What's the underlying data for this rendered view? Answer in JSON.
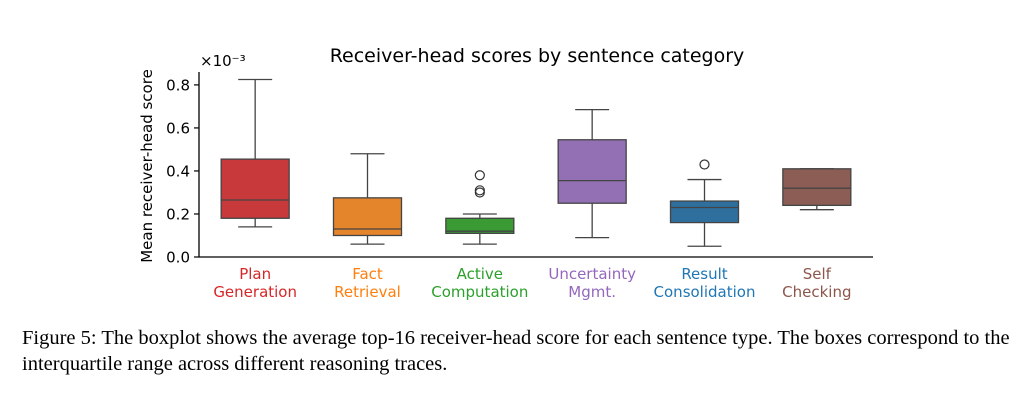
{
  "chart_data": {
    "type": "box",
    "title": "Receiver-head scores by sentence category",
    "ylabel": "Mean receiver-head score",
    "xlabel": "",
    "y_scale_label": "×10⁻³",
    "ylim": [
      0.0,
      0.86
    ],
    "yticks": [
      "0.0",
      "0.2",
      "0.4",
      "0.6",
      "0.8"
    ],
    "ytick_values": [
      0.0,
      0.2,
      0.4,
      0.6,
      0.8
    ],
    "categories": [
      {
        "line1": "Plan",
        "line2": "Generation",
        "color": "#d62728",
        "fill": "#c8393b",
        "whisker_low": 0.14,
        "q1": 0.18,
        "median": 0.265,
        "q3": 0.455,
        "whisker_high": 0.825,
        "outliers": []
      },
      {
        "line1": "Fact",
        "line2": "Retrieval",
        "color": "#ff7f0e",
        "fill": "#e5852b",
        "whisker_low": 0.06,
        "q1": 0.1,
        "median": 0.13,
        "q3": 0.275,
        "whisker_high": 0.48,
        "outliers": []
      },
      {
        "line1": "Active",
        "line2": "Computation",
        "color": "#2ca02c",
        "fill": "#3a9a33",
        "whisker_low": 0.06,
        "q1": 0.11,
        "median": 0.12,
        "q3": 0.18,
        "whisker_high": 0.2,
        "outliers": [
          0.3,
          0.31,
          0.38
        ]
      },
      {
        "line1": "Uncertainty",
        "line2": "Mgmt.",
        "color": "#9467bd",
        "fill": "#9370b3",
        "whisker_low": 0.09,
        "q1": 0.25,
        "median": 0.355,
        "q3": 0.545,
        "whisker_high": 0.685,
        "outliers": []
      },
      {
        "line1": "Result",
        "line2": "Consolidation",
        "color": "#1f77b4",
        "fill": "#2e6f9e",
        "whisker_low": 0.05,
        "q1": 0.16,
        "median": 0.23,
        "q3": 0.26,
        "whisker_high": 0.36,
        "outliers": [
          0.43
        ]
      },
      {
        "line1": "Self",
        "line2": "Checking",
        "color": "#8c564b",
        "fill": "#8b5d55",
        "whisker_low": 0.22,
        "q1": 0.24,
        "median": 0.32,
        "q3": 0.41,
        "whisker_high": 0.41,
        "outliers": []
      }
    ],
    "grid": false,
    "legend": "none"
  },
  "caption": "Figure 5: The boxplot shows the average top-16 receiver-head score for each sentence type. The boxes correspond to the interquartile range across different reasoning traces."
}
